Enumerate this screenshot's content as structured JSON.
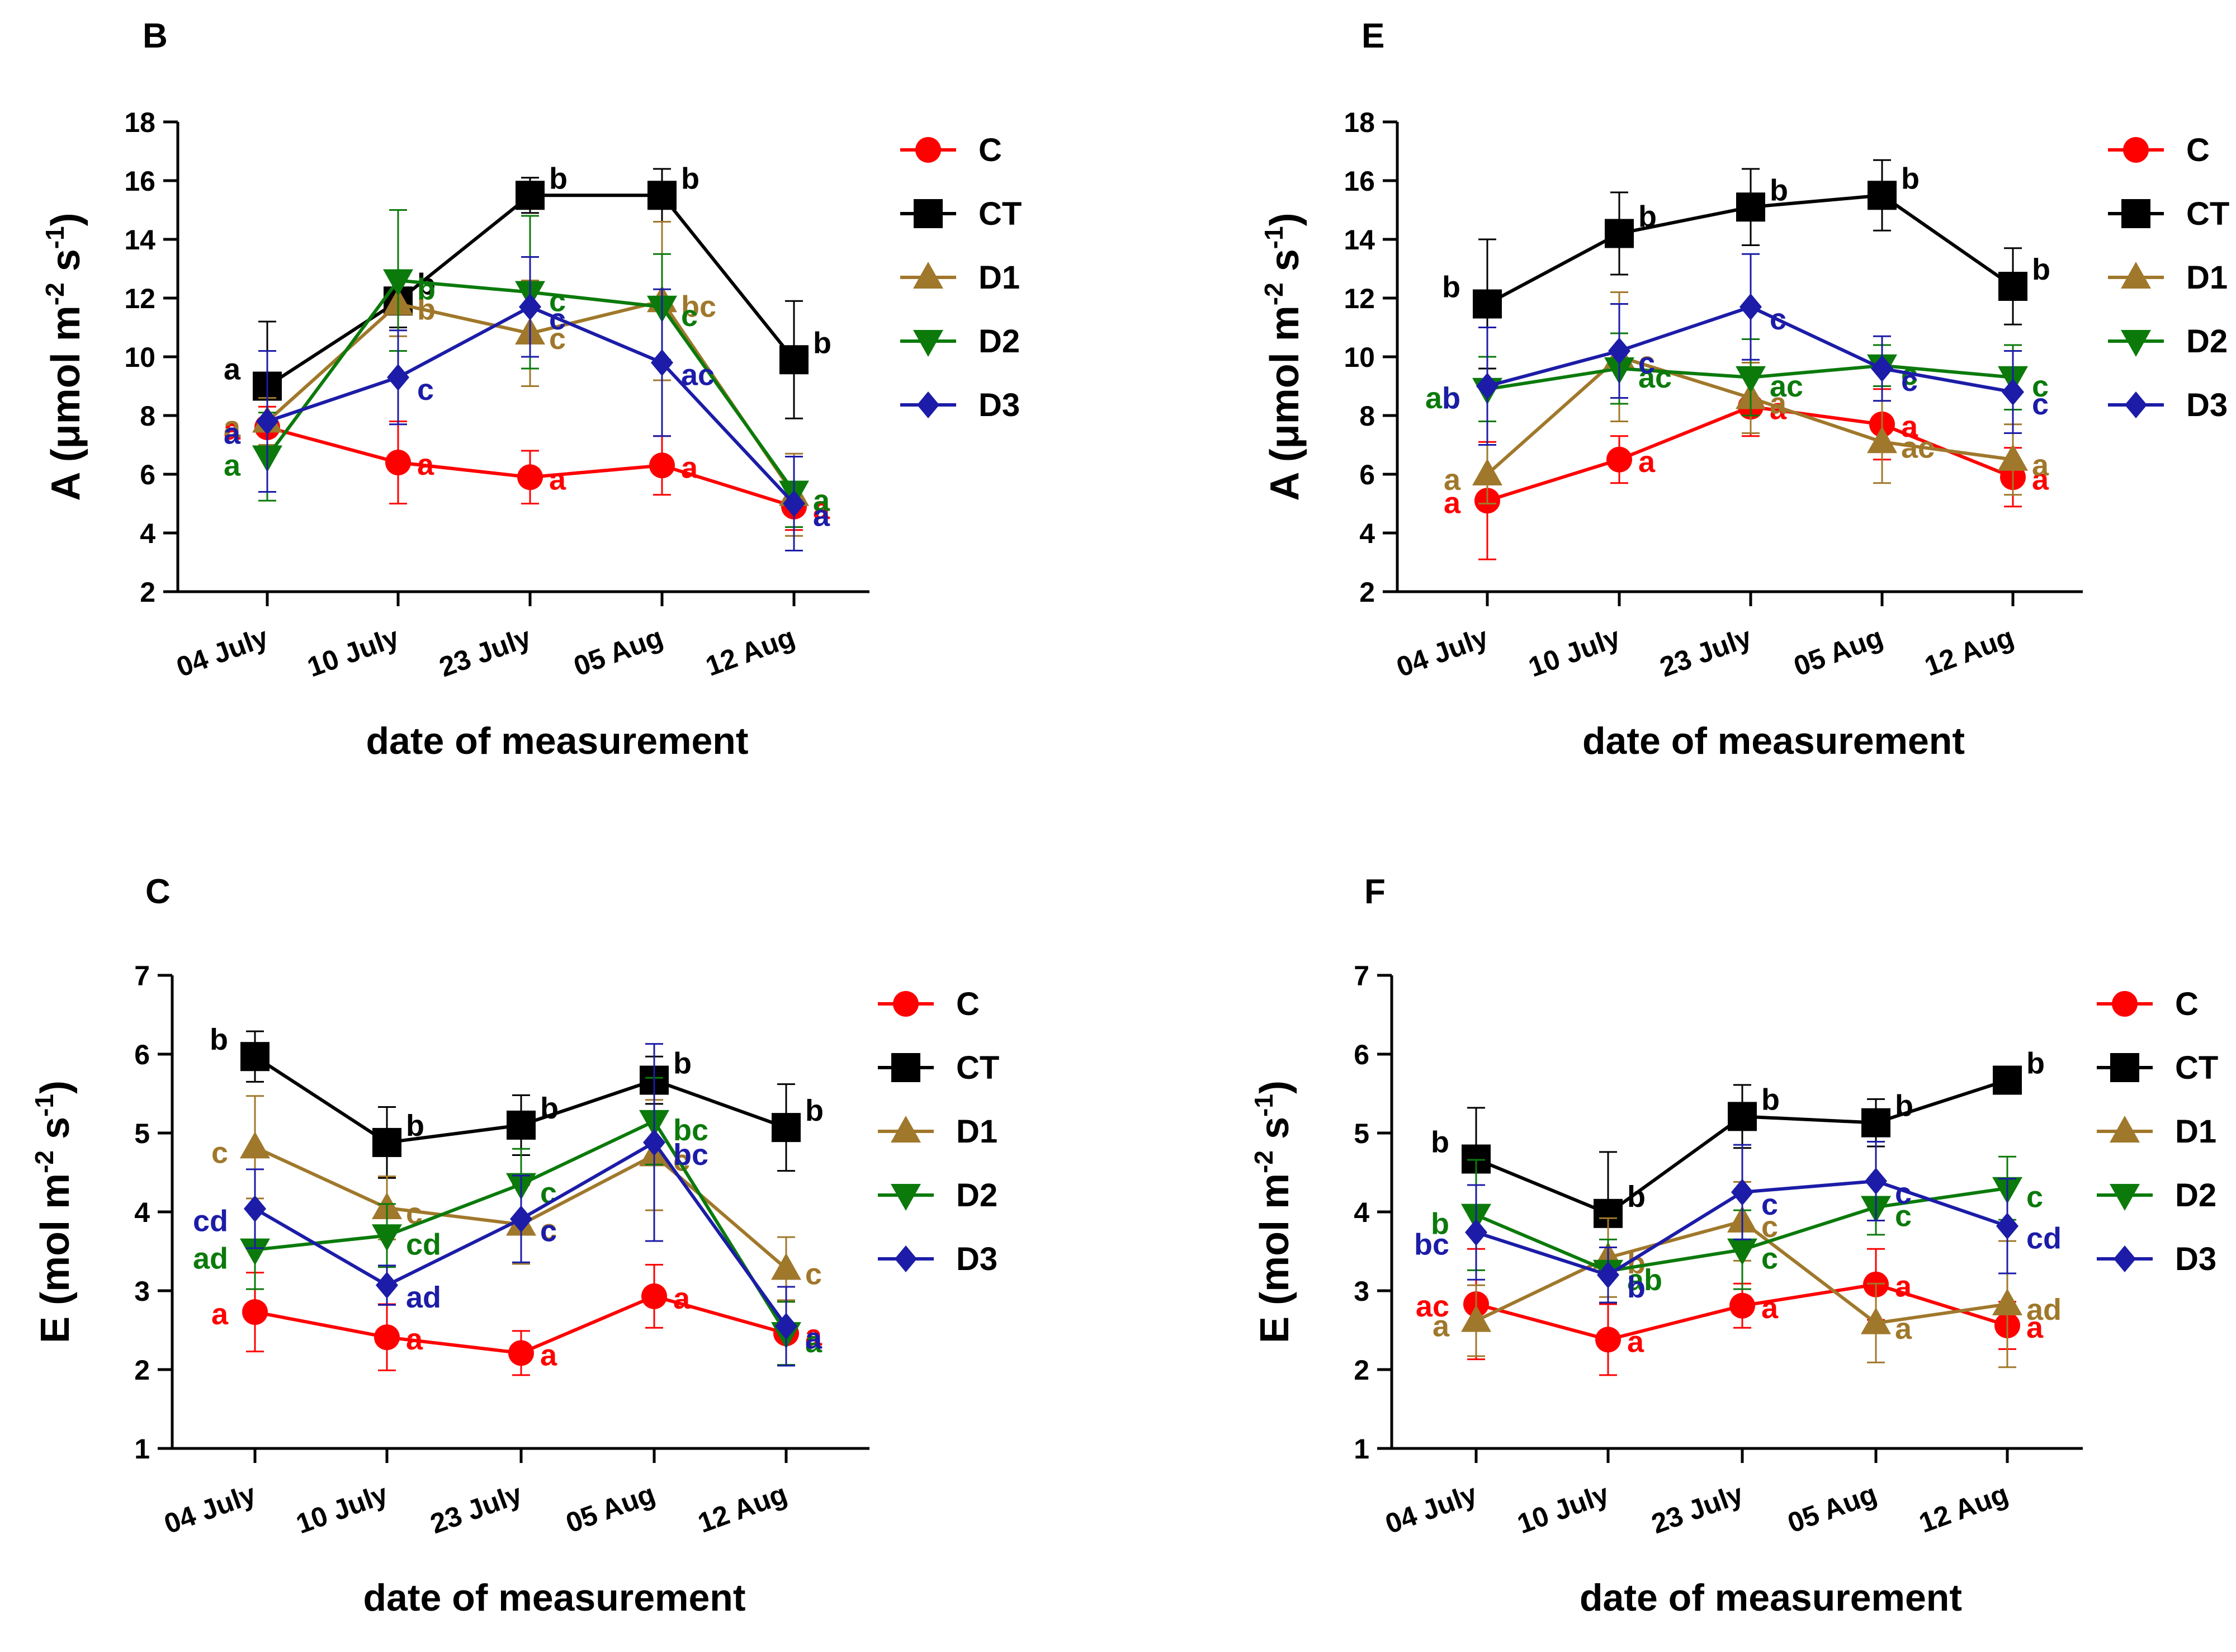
{
  "figure": {
    "layout": "2x2 grid of line charts with error bars"
  },
  "colors": {
    "C": "#ff0000",
    "CT": "#000000",
    "D1": "#a0782b",
    "D2": "#0b7a0b",
    "D3": "#1c1ca8"
  },
  "chart_data": [
    {
      "panel_label": "B",
      "type": "line",
      "categories": [
        "04 July",
        "10 July",
        "23 July",
        "05 Aug",
        "12 Aug"
      ],
      "ylabel_main": "A (",
      "ylabel_mu": "μ",
      "ylabel_unit": "mol m",
      "ylabel_exp1": "-2",
      "ylabel_s": " s",
      "ylabel_exp2": "-1",
      "ylabel_close": ")",
      "xlabel": "date of measurement",
      "ylim": [
        2,
        18
      ],
      "yticks": [
        2,
        4,
        6,
        8,
        10,
        12,
        14,
        16,
        18
      ],
      "series": [
        {
          "name": "C",
          "marker": "circle",
          "values": [
            7.6,
            6.4,
            5.9,
            6.3,
            4.9
          ],
          "errors": [
            0.7,
            1.4,
            0.9,
            1.0,
            0.8
          ],
          "letters": [
            "a",
            "a",
            "a",
            "a",
            "a"
          ]
        },
        {
          "name": "CT",
          "marker": "square",
          "values": [
            9.0,
            11.9,
            15.5,
            15.5,
            9.9
          ],
          "errors": [
            2.2,
            0.9,
            0.6,
            0.9,
            2.0
          ],
          "letters": [
            "a",
            "b",
            "b",
            "b",
            "b"
          ]
        },
        {
          "name": "D1",
          "marker": "triangle-up",
          "values": [
            7.8,
            11.8,
            10.8,
            11.9,
            5.3
          ],
          "errors": [
            0.8,
            1.1,
            1.8,
            2.7,
            1.4
          ],
          "letters": [
            "a",
            "b",
            "c",
            "bc",
            "a"
          ]
        },
        {
          "name": "D2",
          "marker": "triangle-down",
          "values": [
            6.6,
            12.6,
            12.2,
            11.7,
            5.4
          ],
          "errors": [
            1.5,
            2.4,
            2.6,
            1.8,
            1.2
          ],
          "letters": [
            "a",
            "b",
            "c",
            "c",
            "a"
          ]
        },
        {
          "name": "D3",
          "marker": "diamond",
          "values": [
            7.8,
            9.3,
            11.7,
            9.8,
            5.0
          ],
          "errors": [
            2.4,
            1.6,
            1.7,
            2.5,
            1.6
          ],
          "letters": [
            "a",
            "c",
            "c",
            "ac",
            "a"
          ]
        }
      ]
    },
    {
      "panel_label": "E",
      "type": "line",
      "categories": [
        "04 July",
        "10 July",
        "23 July",
        "05 Aug",
        "12 Aug"
      ],
      "ylabel_main": "A (",
      "ylabel_mu": "μ",
      "ylabel_unit": "mol m",
      "ylabel_exp1": "-2",
      "ylabel_s": " s",
      "ylabel_exp2": "-1",
      "ylabel_close": ")",
      "xlabel": "date of measurement",
      "ylim": [
        2,
        18
      ],
      "yticks": [
        2,
        4,
        6,
        8,
        10,
        12,
        14,
        16,
        18
      ],
      "series": [
        {
          "name": "C",
          "marker": "circle",
          "values": [
            5.1,
            6.5,
            8.3,
            7.7,
            5.9
          ],
          "errors": [
            2.0,
            0.8,
            1.0,
            1.2,
            1.0
          ],
          "letters": [
            "a",
            "a",
            "a",
            "a",
            "a"
          ]
        },
        {
          "name": "CT",
          "marker": "square",
          "values": [
            11.8,
            14.2,
            15.1,
            15.5,
            12.4
          ],
          "errors": [
            2.2,
            1.4,
            1.3,
            1.2,
            1.3
          ],
          "letters": [
            "b",
            "b",
            "b",
            "b",
            "b"
          ]
        },
        {
          "name": "D1",
          "marker": "triangle-up",
          "values": [
            6.0,
            10.0,
            8.6,
            7.1,
            6.5
          ],
          "errors": [
            1.0,
            2.2,
            1.2,
            1.4,
            1.2
          ],
          "letters": [
            "a",
            "c",
            "a",
            "ac",
            "a"
          ]
        },
        {
          "name": "D2",
          "marker": "triangle-down",
          "values": [
            8.9,
            9.6,
            9.3,
            9.7,
            9.3
          ],
          "errors": [
            1.1,
            1.2,
            1.3,
            0.7,
            1.1
          ],
          "letters": [
            "ab",
            "ac",
            "ac",
            "c",
            "c"
          ]
        },
        {
          "name": "D3",
          "marker": "diamond",
          "values": [
            9.0,
            10.2,
            11.7,
            9.6,
            8.8
          ],
          "errors": [
            2.0,
            1.6,
            1.8,
            1.1,
            1.4
          ],
          "letters": [
            "b",
            "c",
            "c",
            "c",
            "c"
          ]
        }
      ]
    },
    {
      "panel_label": "C",
      "type": "line",
      "categories": [
        "04 July",
        "10 July",
        "23 July",
        "05 Aug",
        "12 Aug"
      ],
      "ylabel_main": "E (mol m",
      "ylabel_exp1": "-2",
      "ylabel_s": " s",
      "ylabel_exp2": "-1",
      "ylabel_close": ")",
      "xlabel": "date of measurement",
      "ylim": [
        1,
        7
      ],
      "yticks": [
        1,
        2,
        3,
        4,
        5,
        6,
        7
      ],
      "series": [
        {
          "name": "C",
          "marker": "circle",
          "values": [
            2.73,
            2.41,
            2.21,
            2.93,
            2.46
          ],
          "errors": [
            0.5,
            0.42,
            0.28,
            0.4,
            0.4
          ],
          "letters": [
            "a",
            "a",
            "a",
            "a",
            "a"
          ]
        },
        {
          "name": "CT",
          "marker": "square",
          "values": [
            5.97,
            4.88,
            5.1,
            5.67,
            5.07
          ],
          "errors": [
            0.32,
            0.45,
            0.38,
            0.3,
            0.55
          ],
          "letters": [
            "b",
            "b",
            "b",
            "b",
            "b"
          ]
        },
        {
          "name": "D1",
          "marker": "triangle-up",
          "values": [
            4.82,
            4.05,
            3.84,
            4.72,
            3.28
          ],
          "errors": [
            0.65,
            0.4,
            0.5,
            0.7,
            0.4
          ],
          "letters": [
            "c",
            "c",
            "c",
            "c",
            "c"
          ]
        },
        {
          "name": "D2",
          "marker": "triangle-down",
          "values": [
            3.52,
            3.7,
            4.35,
            5.15,
            2.46
          ],
          "errors": [
            0.5,
            0.4,
            0.45,
            0.55,
            0.4
          ],
          "letters": [
            "ad",
            "cd",
            "c",
            "bc",
            "a"
          ]
        },
        {
          "name": "D3",
          "marker": "diamond",
          "values": [
            4.04,
            3.07,
            3.91,
            4.88,
            2.55
          ],
          "errors": [
            0.5,
            0.25,
            0.55,
            1.25,
            0.5
          ],
          "letters": [
            "cd",
            "ad",
            "c",
            "bc",
            "a"
          ]
        }
      ]
    },
    {
      "panel_label": "F",
      "type": "line",
      "categories": [
        "04 July",
        "10 July",
        "23 July",
        "05 Aug",
        "12 Aug"
      ],
      "ylabel_main": "E (mol m",
      "ylabel_exp1": "-2",
      "ylabel_s": " s",
      "ylabel_exp2": "-1",
      "ylabel_close": ")",
      "xlabel": "date of measurement",
      "ylim": [
        1,
        7
      ],
      "yticks": [
        1,
        2,
        3,
        4,
        5,
        6,
        7
      ],
      "series": [
        {
          "name": "C",
          "marker": "circle",
          "values": [
            2.83,
            2.38,
            2.81,
            3.08,
            2.56
          ],
          "errors": [
            0.7,
            0.45,
            0.28,
            0.45,
            0.3
          ],
          "letters": [
            "ac",
            "a",
            "a",
            "a",
            "a"
          ]
        },
        {
          "name": "CT",
          "marker": "square",
          "values": [
            4.67,
            3.98,
            5.21,
            5.13,
            5.67
          ],
          "errors": [
            0.65,
            0.78,
            0.4,
            0.3,
            0.17
          ],
          "letters": [
            "b",
            "b",
            "b",
            "b",
            "b"
          ]
        },
        {
          "name": "D1",
          "marker": "triangle-up",
          "values": [
            2.62,
            3.42,
            3.88,
            2.59,
            2.83
          ],
          "errors": [
            0.45,
            0.5,
            0.5,
            0.5,
            0.8
          ],
          "letters": [
            "a",
            "b",
            "c",
            "a",
            "ad"
          ]
        },
        {
          "name": "D2",
          "marker": "triangle-down",
          "values": [
            3.96,
            3.25,
            3.52,
            4.06,
            4.3
          ],
          "errors": [
            0.7,
            0.4,
            0.5,
            0.35,
            0.4
          ],
          "letters": [
            "b",
            "ab",
            "c",
            "c",
            "c"
          ]
        },
        {
          "name": "D3",
          "marker": "diamond",
          "values": [
            3.74,
            3.2,
            4.25,
            4.39,
            3.82
          ],
          "errors": [
            0.6,
            0.35,
            0.6,
            0.5,
            0.6
          ],
          "letters": [
            "bc",
            "b",
            "c",
            "c",
            "cd"
          ]
        }
      ]
    }
  ]
}
